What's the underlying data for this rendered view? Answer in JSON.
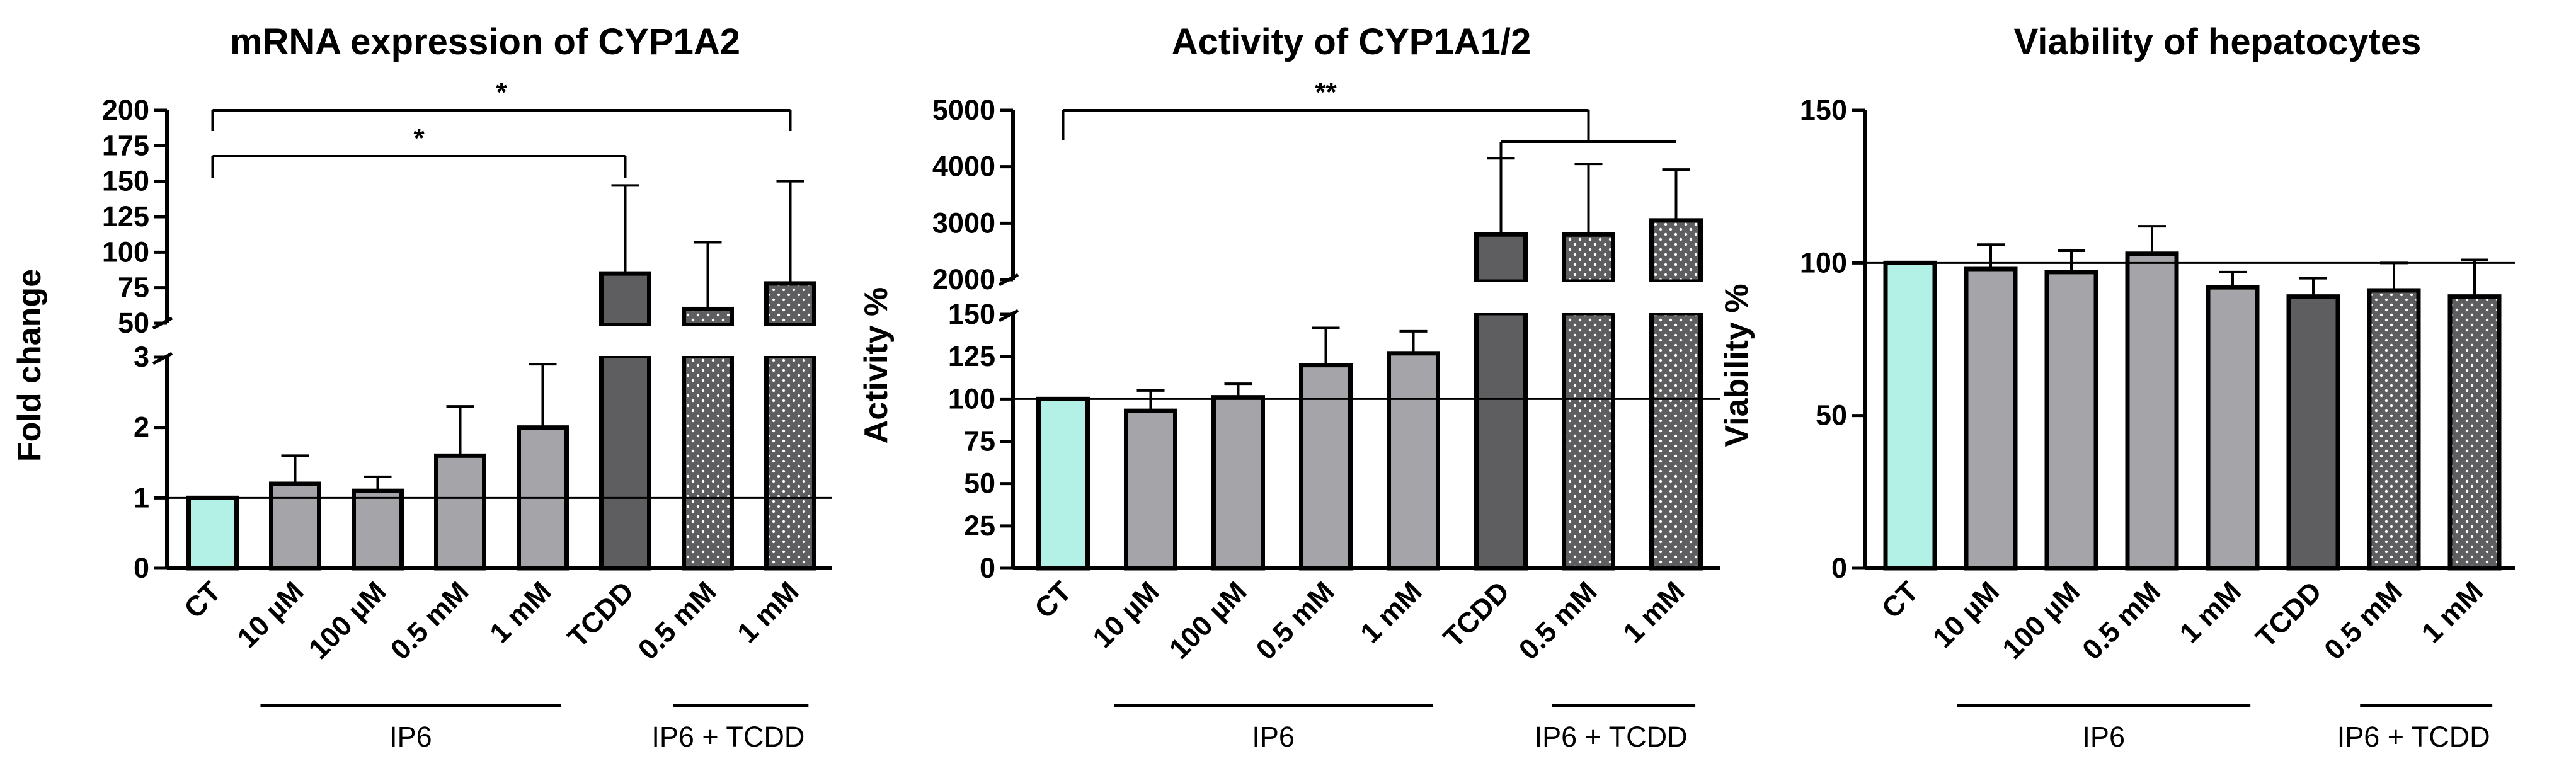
{
  "chart_data": [
    {
      "type": "bar",
      "title": "mRNA expression of CYP1A2",
      "ylabel": "Fold change",
      "categories": [
        "CT",
        "10 µM",
        "100 µM",
        "0.5 mM",
        "1 mM",
        "TCDD",
        "0.5 mM",
        "1 mM"
      ],
      "values": [
        1,
        1.2,
        1.1,
        1.6,
        2.0,
        85,
        60,
        78
      ],
      "errors": [
        0,
        0.4,
        0.2,
        0.7,
        0.9,
        62,
        47,
        72
      ],
      "fills": [
        "cyan",
        "gray",
        "gray",
        "gray",
        "gray",
        "dark",
        "dotted",
        "dotted"
      ],
      "ylim": [
        0,
        200
      ],
      "axis_break": {
        "lower": [
          0,
          3
        ],
        "upper": [
          50,
          200
        ]
      },
      "yticks_lower": [
        "0",
        "1",
        "2",
        "3"
      ],
      "yticks_upper": [
        "50",
        "75",
        "100",
        "125",
        "150",
        "175",
        "200"
      ],
      "reference_line": 1,
      "groups": [
        {
          "label": "IP6",
          "from": 1,
          "to": 4
        },
        {
          "label": "IP6 + TCDD",
          "from": 6,
          "to": 7
        }
      ],
      "significance": [
        {
          "from": 0,
          "to": 7,
          "label": "*"
        },
        {
          "from": 0,
          "to": 5,
          "label": "*"
        }
      ]
    },
    {
      "type": "bar",
      "title": "Activity of CYP1A1/2",
      "ylabel": "Activity %",
      "categories": [
        "CT",
        "10 µM",
        "100 µM",
        "0.5 mM",
        "1 mM",
        "TCDD",
        "0.5 mM",
        "1 mM"
      ],
      "values": [
        100,
        93,
        101,
        120,
        127,
        2800,
        2800,
        3050
      ],
      "errors": [
        0,
        12,
        8,
        22,
        13,
        1350,
        1250,
        900
      ],
      "fills": [
        "cyan",
        "gray",
        "gray",
        "gray",
        "gray",
        "dark",
        "dotted",
        "dotted"
      ],
      "ylim": [
        0,
        5000
      ],
      "axis_break": {
        "lower": [
          0,
          150
        ],
        "upper": [
          2000,
          5000
        ]
      },
      "yticks_lower": [
        "0",
        "25",
        "50",
        "75",
        "100",
        "125",
        "150"
      ],
      "yticks_upper": [
        "2000",
        "3000",
        "4000",
        "5000"
      ],
      "reference_line": 100,
      "groups": [
        {
          "label": "IP6",
          "from": 1,
          "to": 4
        },
        {
          "label": "IP6 + TCDD",
          "from": 6,
          "to": 7
        }
      ],
      "significance": [
        {
          "from": 0,
          "to": 6,
          "label": "**"
        },
        {
          "from": 5,
          "to": 7,
          "label": ""
        }
      ]
    },
    {
      "type": "bar",
      "title": "Viability of hepatocytes",
      "ylabel": "Viability %",
      "categories": [
        "CT",
        "10 µM",
        "100 µM",
        "0.5 mM",
        "1 mM",
        "TCDD",
        "0.5 mM",
        "1 mM"
      ],
      "values": [
        100,
        98,
        97,
        103,
        92,
        89,
        91,
        89
      ],
      "errors": [
        0,
        8,
        7,
        9,
        5,
        6,
        9,
        12
      ],
      "fills": [
        "cyan",
        "gray",
        "gray",
        "gray",
        "gray",
        "dark",
        "dotted",
        "dotted"
      ],
      "ylim": [
        0,
        150
      ],
      "yticks": [
        "0",
        "50",
        "100",
        "150"
      ],
      "reference_line": 100,
      "groups": [
        {
          "label": "IP6",
          "from": 1,
          "to": 4
        },
        {
          "label": "IP6 + TCDD",
          "from": 6,
          "to": 7
        }
      ],
      "significance": []
    }
  ],
  "colors": {
    "cyan": "#b3f1e6",
    "gray": "#a5a5a9",
    "dark": "#5e5e60",
    "dotted": "#5e5e60",
    "dot": "#ffffff",
    "line": "#000000"
  }
}
